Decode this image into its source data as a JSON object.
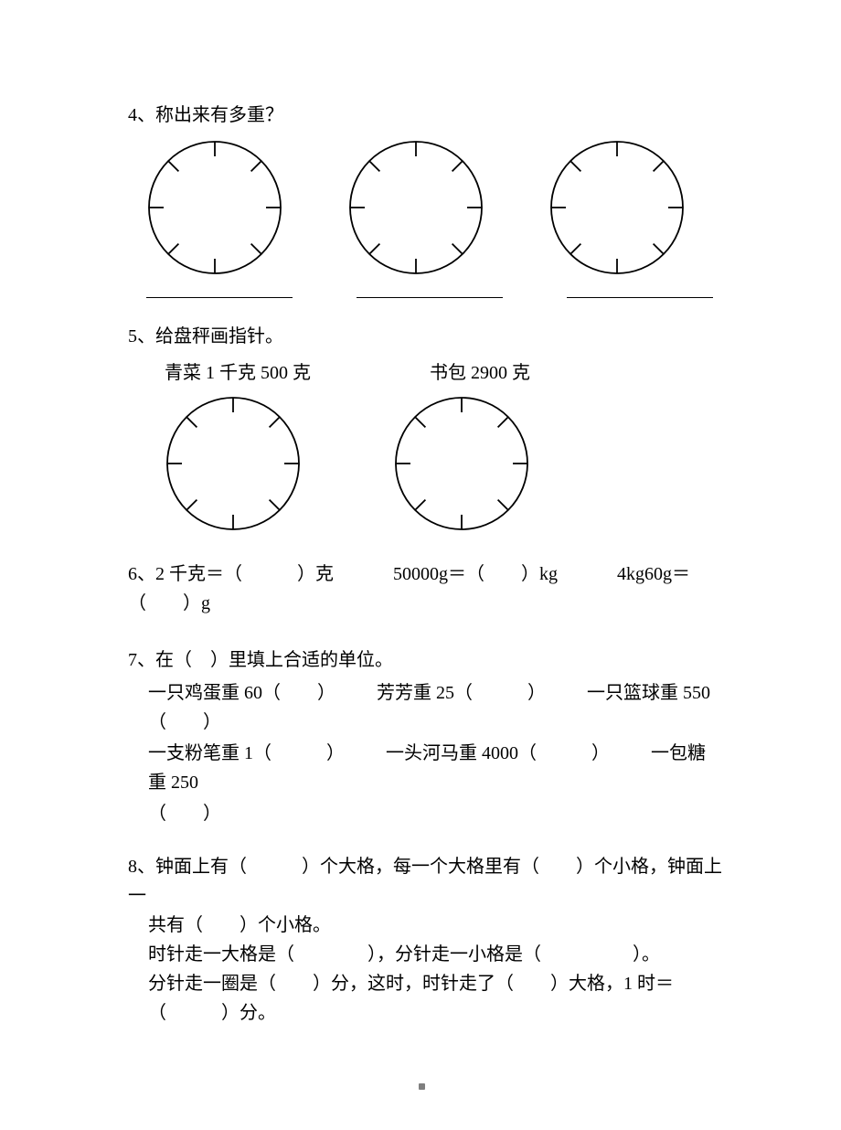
{
  "dial": {
    "radius": 72,
    "stroke": "#000000",
    "stroke_width": 1.8,
    "tick_len": 16,
    "tick_angles_deg": [
      0,
      45,
      90,
      135,
      180,
      225,
      270,
      315
    ]
  },
  "q4": {
    "title": "4、称出来有多重？",
    "blank_count": 3
  },
  "q5": {
    "title": "5、给盘秤画指针。",
    "labels": [
      "青菜 1 千克 500 克",
      "书包 2900 克"
    ]
  },
  "q6": {
    "parts": [
      "6、2 千克＝（　　　）克",
      "50000g＝（　　）kg",
      "4kg60g＝（　　）g"
    ]
  },
  "q7": {
    "title": "7、在（　）里填上合适的单位。",
    "row1": [
      "一只鸡蛋重 60（　　）",
      "芳芳重 25（　　　）",
      "一只篮球重 550（　　）"
    ],
    "row2": [
      "一支粉笔重 1（　　　）",
      "一头河马重 4000（　　　）",
      "一包糖重 250"
    ],
    "row3": "（　　）"
  },
  "q8": {
    "line1": "8、钟面上有（　　　）个大格，每一个大格里有（　　）个小格，钟面上一",
    "line2": "共有（　　）个小格。",
    "line3": "时针走一大格是（　　　　），分针走一小格是（　　　　　）。",
    "line4": "分针走一圈是（　　）分，这时，时针走了（　　）大格，1 时＝（　　　）分。"
  },
  "colors": {
    "text": "#000000",
    "background": "#ffffff",
    "footer_dot": "#7f7f7f"
  }
}
